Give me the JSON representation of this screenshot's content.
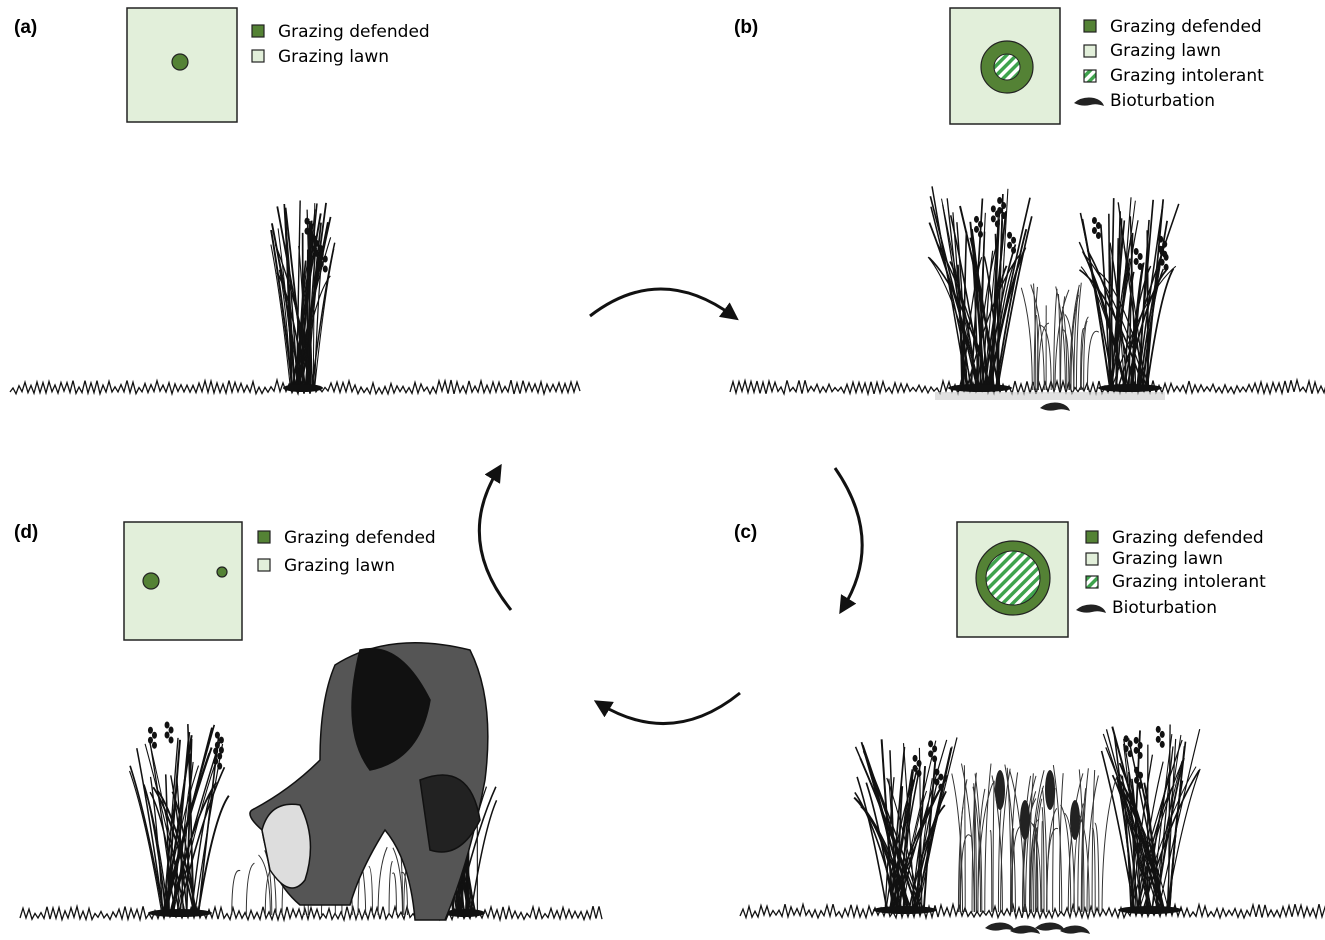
{
  "panels": [
    {
      "label": "(a)",
      "legend": [
        "Grazing defended",
        "Grazing lawn"
      ]
    },
    {
      "label": "(b)",
      "legend": [
        "Grazing defended",
        "Grazing lawn",
        "Grazing intolerant",
        "Bioturbation"
      ]
    },
    {
      "label": "(c)",
      "legend": [
        "Grazing defended",
        "Grazing lawn",
        "Grazing intolerant",
        "Bioturbation"
      ]
    },
    {
      "label": "(d)",
      "legend": [
        "Grazing defended",
        "Grazing lawn"
      ]
    }
  ]
}
